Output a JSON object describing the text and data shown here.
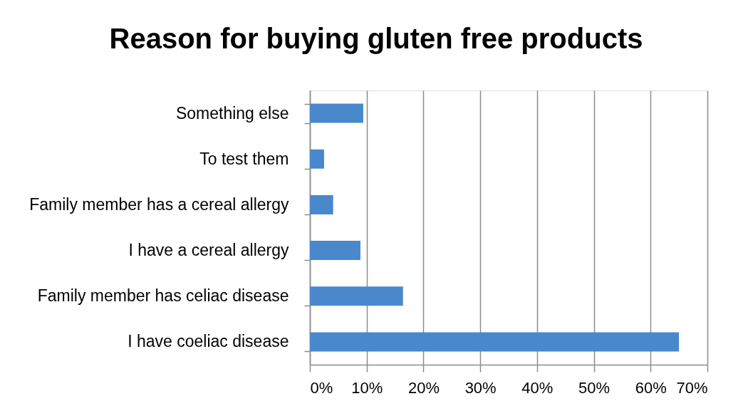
{
  "chart_data": {
    "type": "bar",
    "orientation": "horizontal",
    "title": "Reason for buying gluten free products",
    "categories": [
      "Something else",
      "To test them",
      "Family member has a cereal allergy",
      "I have a cereal allergy",
      "Family member has celiac disease",
      "I have coeliac disease"
    ],
    "values": [
      9.4,
      2.5,
      4.1,
      8.9,
      16.4,
      65
    ],
    "color": "#4a88cc",
    "xlim": [
      0,
      70
    ],
    "xticks": [
      {
        "value": 0,
        "label": "0%"
      },
      {
        "value": 10,
        "label": "10%"
      },
      {
        "value": 20,
        "label": "20%"
      },
      {
        "value": 30,
        "label": "30%"
      },
      {
        "value": 40,
        "label": "40%"
      },
      {
        "value": 50,
        "label": "50%"
      },
      {
        "value": 60,
        "label": "60%"
      },
      {
        "value": 70,
        "label": "70%"
      }
    ],
    "grid": "x"
  }
}
